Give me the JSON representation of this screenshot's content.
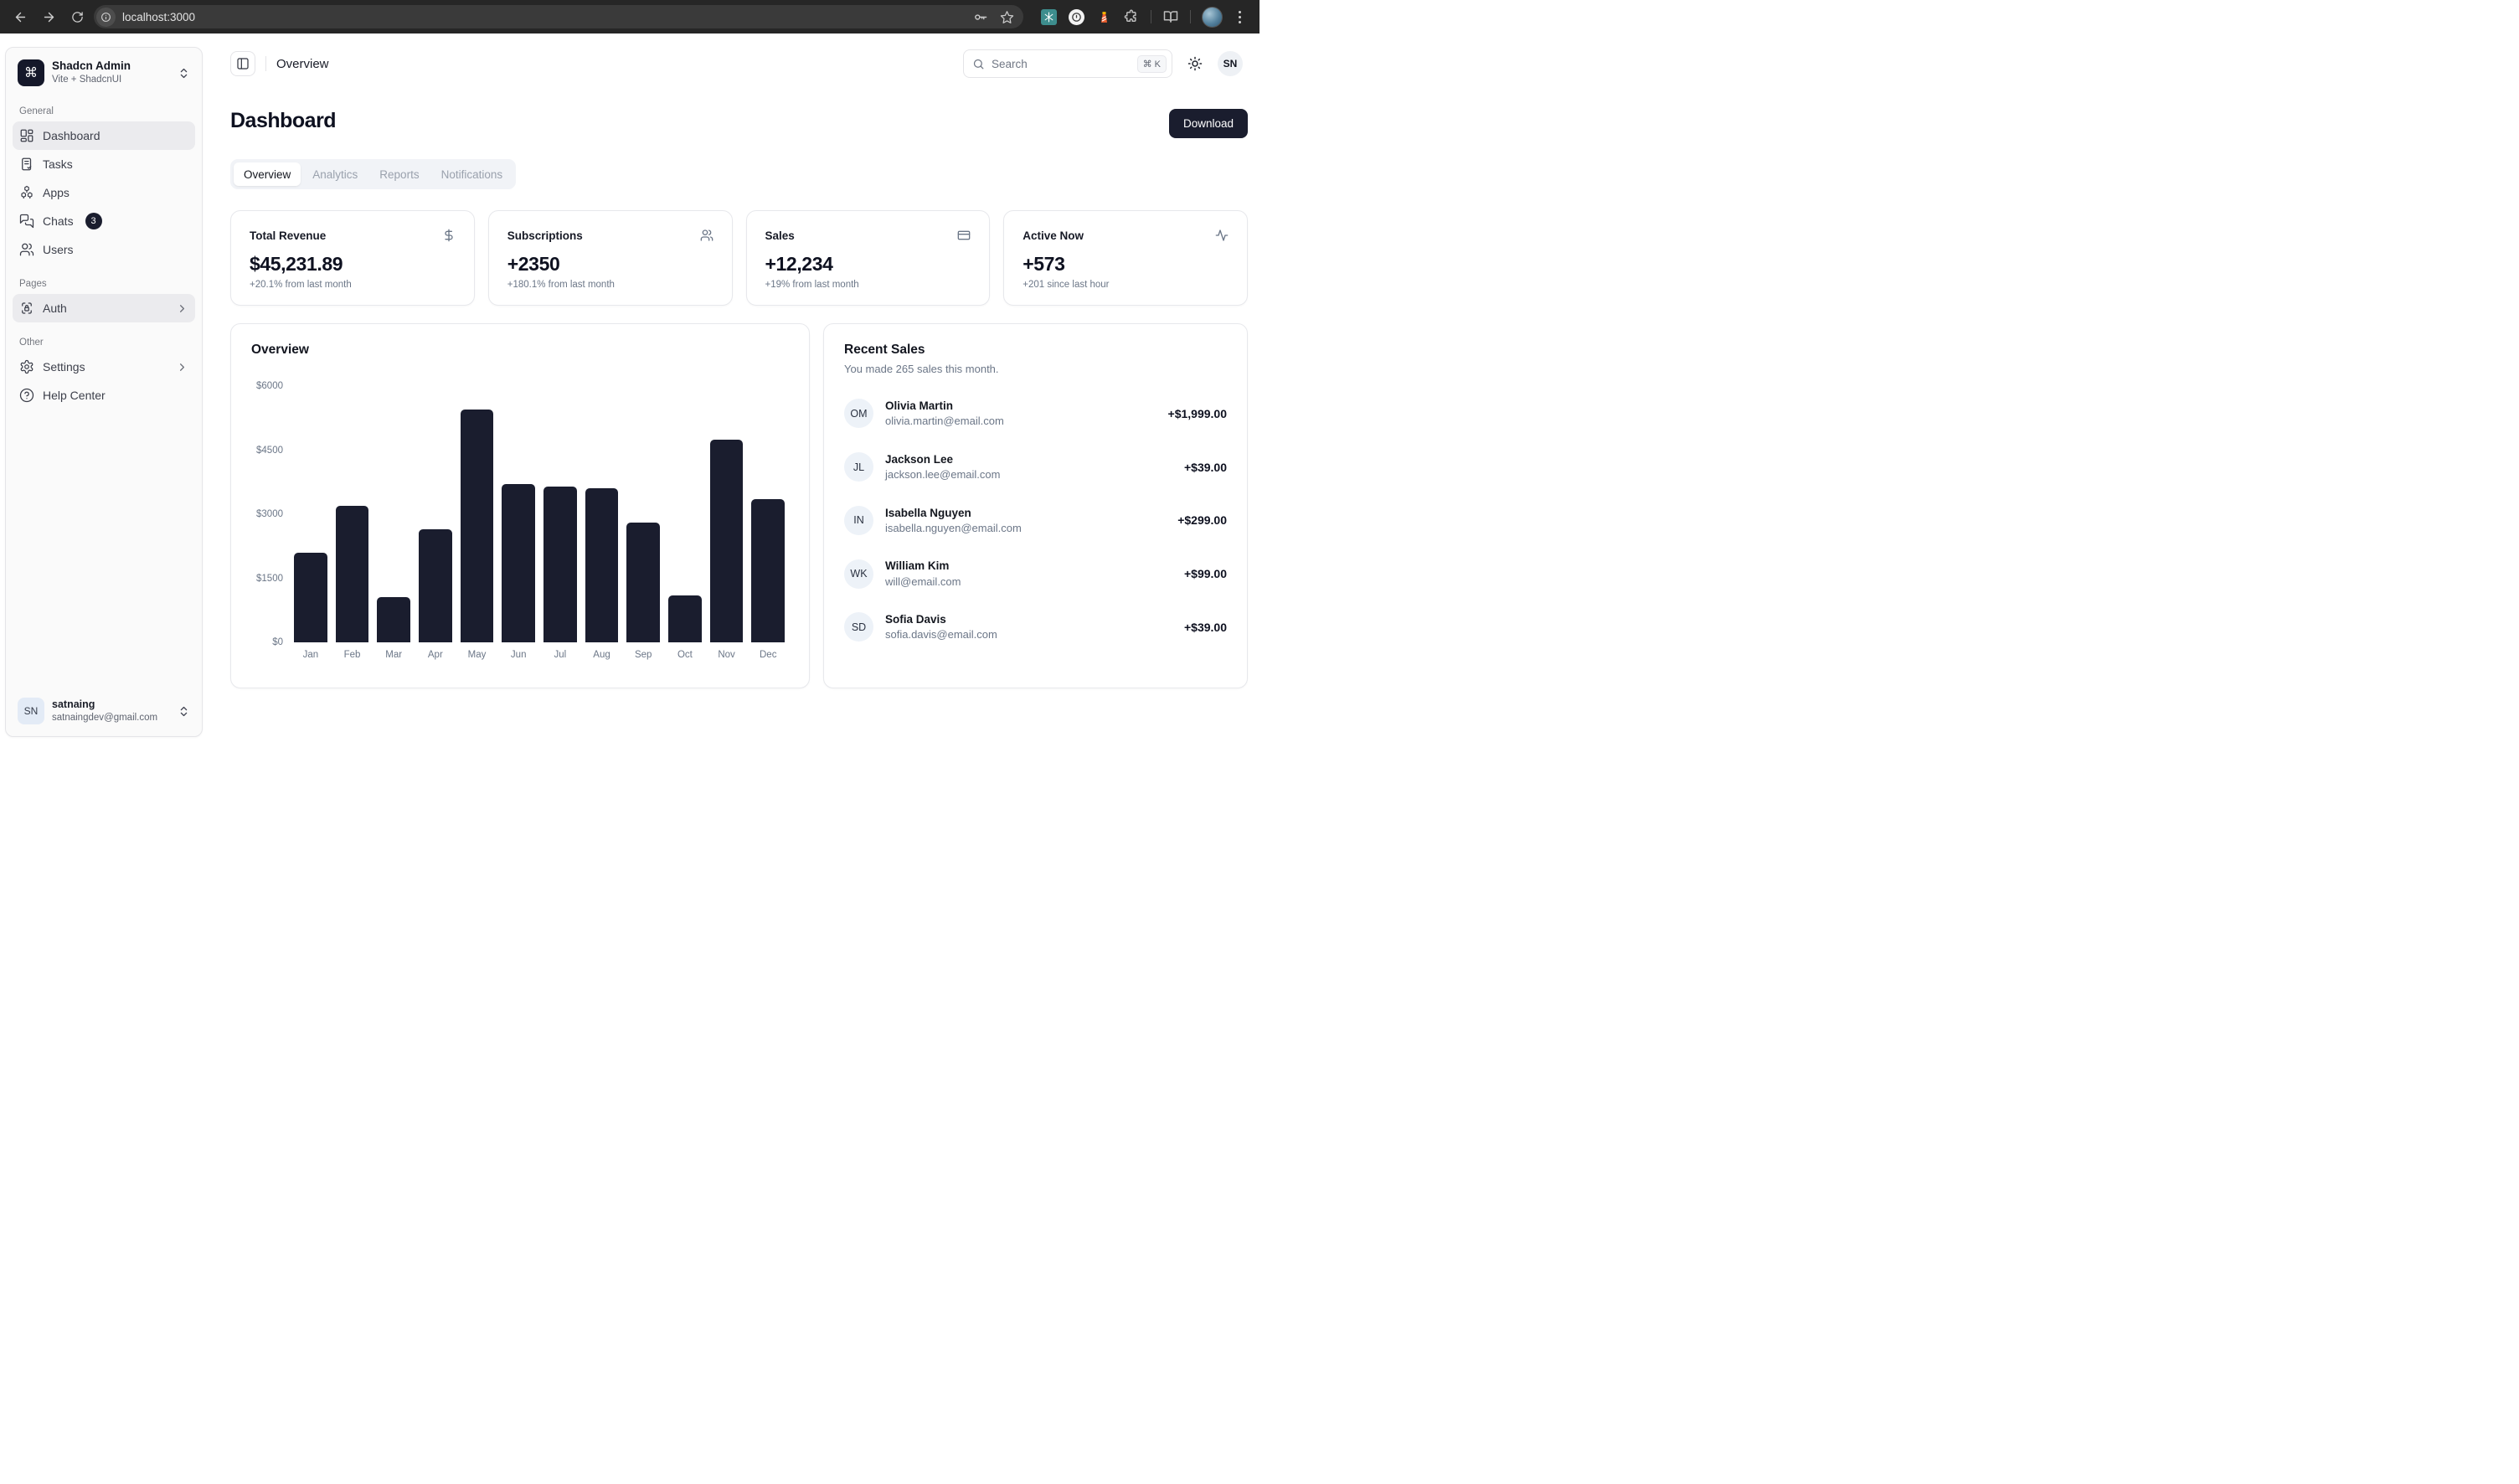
{
  "browser": {
    "url": "localhost:3000"
  },
  "sidebar": {
    "team": {
      "logo_glyph": "⌘",
      "name": "Shadcn Admin",
      "subtitle": "Vite + ShadcnUI"
    },
    "sections": [
      {
        "label": "General",
        "items": [
          {
            "label": "Dashboard",
            "icon": "layout-dashboard-icon",
            "active": true
          },
          {
            "label": "Tasks",
            "icon": "clipboard-check-icon"
          },
          {
            "label": "Apps",
            "icon": "boxes-icon"
          },
          {
            "label": "Chats",
            "icon": "messages-icon",
            "badge": "3"
          },
          {
            "label": "Users",
            "icon": "users-icon"
          }
        ]
      },
      {
        "label": "Pages",
        "items": [
          {
            "label": "Auth",
            "icon": "lock-access-icon",
            "active": true,
            "chevron": true
          }
        ]
      },
      {
        "label": "Other",
        "items": [
          {
            "label": "Settings",
            "icon": "gear-icon",
            "chevron": true
          },
          {
            "label": "Help Center",
            "icon": "help-circle-icon"
          }
        ]
      }
    ],
    "user": {
      "initials": "SN",
      "name": "satnaing",
      "email": "satnaingdev@gmail.com"
    }
  },
  "header": {
    "breadcrumb": "Overview",
    "search_placeholder": "Search",
    "search_kbd": "⌘ K",
    "avatar_initials": "SN"
  },
  "page": {
    "title": "Dashboard",
    "download_label": "Download",
    "tabs": [
      {
        "label": "Overview",
        "active": true
      },
      {
        "label": "Analytics"
      },
      {
        "label": "Reports"
      },
      {
        "label": "Notifications"
      }
    ]
  },
  "stats": [
    {
      "title": "Total Revenue",
      "icon": "dollar-sign-icon",
      "value": "$45,231.89",
      "subtext": "+20.1% from last month"
    },
    {
      "title": "Subscriptions",
      "icon": "users-icon",
      "value": "+2350",
      "subtext": "+180.1% from last month"
    },
    {
      "title": "Sales",
      "icon": "credit-card-icon",
      "value": "+12,234",
      "subtext": "+19% from last month"
    },
    {
      "title": "Active Now",
      "icon": "activity-icon",
      "value": "+573",
      "subtext": "+201 since last hour"
    }
  ],
  "chart_data": {
    "type": "bar",
    "title": "Overview",
    "categories": [
      "Jan",
      "Feb",
      "Mar",
      "Apr",
      "May",
      "Jun",
      "Jul",
      "Aug",
      "Sep",
      "Oct",
      "Nov",
      "Dec"
    ],
    "values": [
      2100,
      3200,
      1050,
      2650,
      5450,
      3700,
      3650,
      3600,
      2800,
      1100,
      4750,
      3350
    ],
    "xlabel": "",
    "ylabel": "",
    "ylim": [
      0,
      6000
    ],
    "yticks": [
      "$6000",
      "$4500",
      "$3000",
      "$1500",
      "$0"
    ],
    "grid": false,
    "legend": false,
    "bar_color": "#1a1d2e"
  },
  "recent_sales": {
    "title": "Recent Sales",
    "subtitle": "You made 265 sales this month.",
    "items": [
      {
        "initials": "OM",
        "name": "Olivia Martin",
        "email": "olivia.martin@email.com",
        "amount": "+$1,999.00"
      },
      {
        "initials": "JL",
        "name": "Jackson Lee",
        "email": "jackson.lee@email.com",
        "amount": "+$39.00"
      },
      {
        "initials": "IN",
        "name": "Isabella Nguyen",
        "email": "isabella.nguyen@email.com",
        "amount": "+$299.00"
      },
      {
        "initials": "WK",
        "name": "William Kim",
        "email": "will@email.com",
        "amount": "+$99.00"
      },
      {
        "initials": "SD",
        "name": "Sofia Davis",
        "email": "sofia.davis@email.com",
        "amount": "+$39.00"
      }
    ]
  },
  "colors": {
    "primary": "#1a1d2e",
    "muted_text": "#6b7687",
    "border": "#e7e8ec",
    "sidebar_bg": "#fafafa",
    "active_item_bg": "#ebebee",
    "tabs_bg": "#f1f3f7",
    "chrome_bg": "#262626"
  }
}
